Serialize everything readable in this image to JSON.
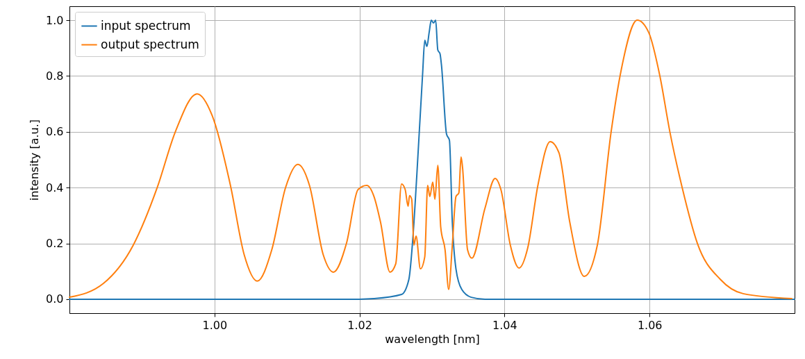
{
  "chart_data": {
    "type": "line",
    "xlabel": "wavelength [nm]",
    "ylabel": "intensity [a.u.]",
    "xlim": [
      0.98,
      1.08
    ],
    "ylim": [
      -0.05,
      1.05
    ],
    "xticks": [
      {
        "value": 1.0,
        "label": "1.00"
      },
      {
        "value": 1.02,
        "label": "1.02"
      },
      {
        "value": 1.04,
        "label": "1.04"
      },
      {
        "value": 1.06,
        "label": "1.06"
      }
    ],
    "yticks": [
      {
        "value": 0,
        "label": "0.0"
      },
      {
        "value": 0.2,
        "label": "0.2"
      },
      {
        "value": 0.4,
        "label": "0.4"
      },
      {
        "value": 0.6,
        "label": "0.6"
      },
      {
        "value": 0.8,
        "label": "0.8"
      },
      {
        "value": 1.0,
        "label": "1.0"
      }
    ],
    "grid": true,
    "legend": "top left",
    "line_style": "solid",
    "marker": "none",
    "series": [
      {
        "name": "input spectrum",
        "color": "#1f77b4",
        "x": [
          0.98,
          1.0,
          1.02,
          1.022,
          1.0258,
          1.0268,
          1.0274,
          1.0279,
          1.0287,
          1.029,
          1.0293,
          1.0296,
          1.0299,
          1.0302,
          1.0305,
          1.0308,
          1.0311,
          1.0313,
          1.032,
          1.0324,
          1.0328,
          1.0333,
          1.0341,
          1.0354,
          1.0373,
          1.05,
          1.08
        ],
        "values": [
          0,
          0,
          0,
          0.002,
          0.017,
          0.07,
          0.234,
          0.443,
          0.806,
          0.928,
          0.906,
          0.955,
          1.0,
          0.99,
          1.0,
          0.893,
          0.88,
          0.84,
          0.592,
          0.57,
          0.276,
          0.109,
          0.035,
          0.007,
          0,
          0,
          0
        ]
      },
      {
        "name": "output spectrum",
        "color": "#ff7f0e",
        "x": [
          0.98,
          0.9847,
          0.9888,
          0.9921,
          0.9946,
          0.9976,
          0.9997,
          1.0022,
          1.0041,
          1.0059,
          1.0079,
          1.0098,
          1.0115,
          1.0131,
          1.015,
          1.0164,
          1.0182,
          1.0198,
          1.021,
          1.022,
          1.0229,
          1.0242,
          1.025,
          1.0258,
          1.0263,
          1.0267,
          1.0269,
          1.0272,
          1.0275,
          1.0278,
          1.0284,
          1.029,
          1.0294,
          1.0297,
          1.0301,
          1.0304,
          1.0308,
          1.0312,
          1.0318,
          1.0323,
          1.0328,
          1.0333,
          1.0337,
          1.034,
          1.0342,
          1.0349,
          1.0355,
          1.0373,
          1.0387,
          1.0395,
          1.0408,
          1.042,
          1.0432,
          1.0446,
          1.0463,
          1.0475,
          1.049,
          1.051,
          1.0528,
          1.0547,
          1.0561,
          1.0583,
          1.0599,
          1.0614,
          1.0628,
          1.0645,
          1.0666,
          1.0698,
          1.0729,
          1.0796
        ],
        "values": [
          0.007,
          0.057,
          0.194,
          0.4,
          0.6,
          0.736,
          0.657,
          0.408,
          0.159,
          0.065,
          0.177,
          0.4,
          0.483,
          0.408,
          0.159,
          0.097,
          0.2,
          0.393,
          0.408,
          0.368,
          0.276,
          0.097,
          0.127,
          0.413,
          0.393,
          0.333,
          0.371,
          0.358,
          0.194,
          0.226,
          0.109,
          0.152,
          0.408,
          0.368,
          0.42,
          0.358,
          0.48,
          0.259,
          0.177,
          0.035,
          0.194,
          0.368,
          0.381,
          0.51,
          0.475,
          0.177,
          0.147,
          0.326,
          0.433,
          0.393,
          0.194,
          0.112,
          0.184,
          0.408,
          0.565,
          0.525,
          0.276,
          0.082,
          0.194,
          0.6,
          0.823,
          1.0,
          0.955,
          0.803,
          0.6,
          0.4,
          0.2,
          0.07,
          0.02,
          0.002
        ]
      }
    ]
  }
}
